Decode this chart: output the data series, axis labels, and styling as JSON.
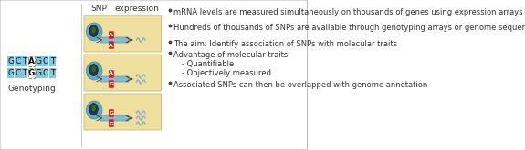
{
  "background_color": "#ffffff",
  "border_color": "#bbbbbb",
  "left_seq_bg": "#7ec8e3",
  "genotype_rows": [
    {
      "letters": [
        "G",
        "C",
        "T",
        "A",
        "G",
        "C",
        "T"
      ],
      "highlight_idx": 3
    },
    {
      "letters": [
        "G",
        "C",
        "T",
        "G",
        "G",
        "C",
        "T"
      ],
      "highlight_idx": 3
    }
  ],
  "genotype_label": "Genotyping",
  "middle_panel_bg": "#f0e0a0",
  "middle_border": "#c8b870",
  "middle_label_snp": "SNP",
  "middle_label_expr": "expression",
  "diagrams": [
    {
      "top_snp": "A",
      "bot_snp": "A",
      "n_waves": 1
    },
    {
      "top_snp": "A",
      "bot_snp": "G",
      "n_waves": 2
    },
    {
      "top_snp": "G",
      "bot_snp": "G",
      "n_waves": 3
    }
  ],
  "snp_box_color": "#cc2222",
  "snp_text_color": "#ffffff",
  "bar_color": "#88bbcc",
  "bar_border": "#5599bb",
  "cell_fill": "#66aabb",
  "cell_border": "#4488aa",
  "nucleus_dark": "#223366",
  "nucleus_green": "#336622",
  "arrow_color": "#444444",
  "wave_color": "#88aacc",
  "bullet_color": "#444444",
  "text_color": "#333333",
  "bullet_points": [
    {
      "text": "mRNA levels are measured simultaneously on thousands of genes using expression arrays or RNA-seq",
      "indent": 0,
      "bullet": true
    },
    {
      "text": "Hundreds of thousands of SNPs are available through genotyping arrays or genome sequencing",
      "indent": 0,
      "bullet": true
    },
    {
      "text": "The aim: Identify association of SNPs with molecular traits",
      "indent": 0,
      "bullet": true
    },
    {
      "text": "Advantage of molecular traits:",
      "indent": 0,
      "bullet": true
    },
    {
      "text": "- Quantifiable",
      "indent": 1,
      "bullet": false
    },
    {
      "text": "- Objectively measured",
      "indent": 1,
      "bullet": false
    },
    {
      "text": "Associated SNPs can then be overlapped with genome annotation",
      "indent": 0,
      "bullet": true
    }
  ],
  "seq_fontsize": 6.5,
  "label_fontsize": 6.5,
  "bullet_fontsize": 6.0,
  "snp_fontsize": 4.5,
  "diagram_label_fontsize": 6.5
}
